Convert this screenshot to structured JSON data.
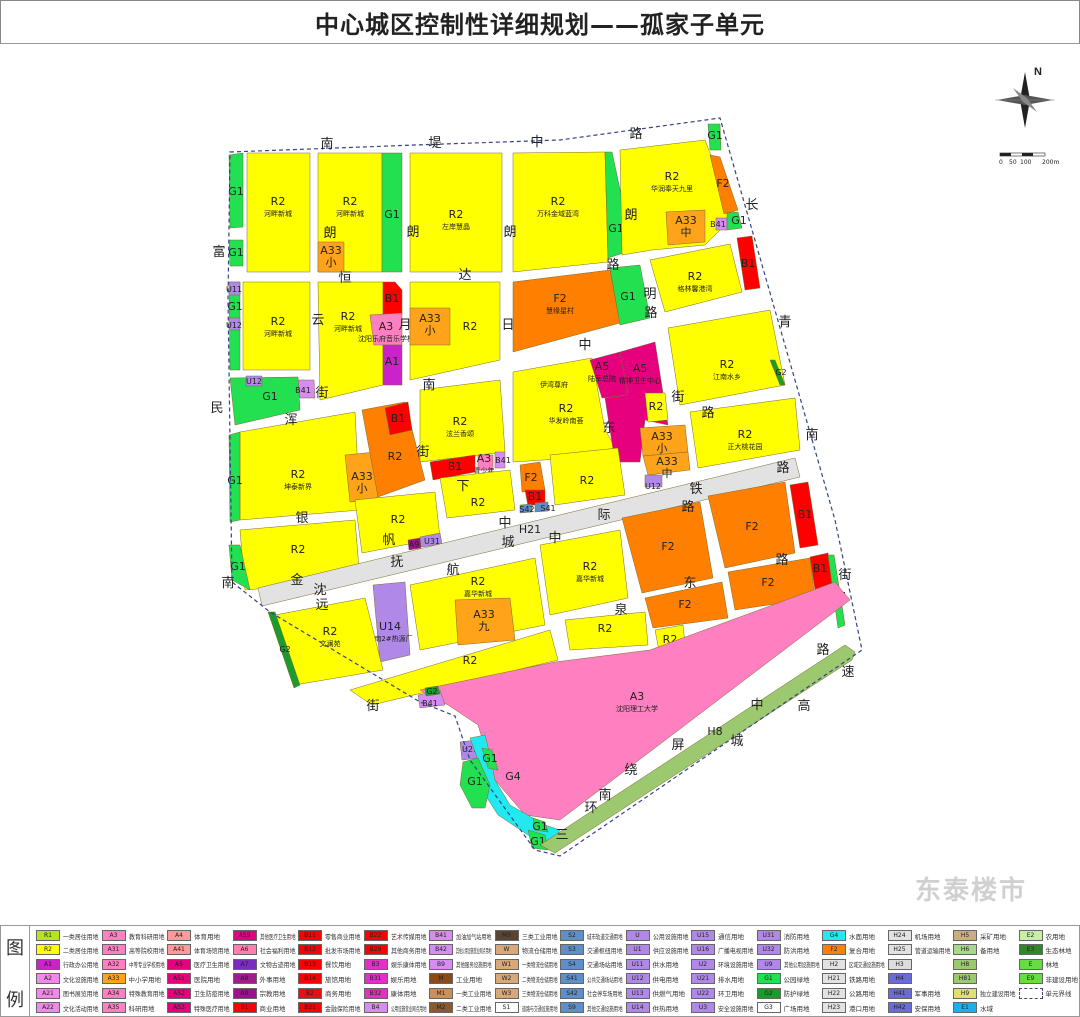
{
  "title": "中心城区控制性详细规划——孤家子单元",
  "compass": {
    "north_label": "N",
    "scale_labels": [
      "0",
      "50",
      "100",
      "200m"
    ]
  },
  "land_use_colors": {
    "R1": "#b5e61d",
    "R2": "#ffff00",
    "A1": "#cc22cc",
    "A2": "#f08ae8",
    "A3": "#ff80c0",
    "A33": "#ffa41a",
    "A4": "#ff9a9a",
    "A5": "#e6007e",
    "A6": "#ff80b0",
    "A7": "#7a2bc0",
    "A8": "#a01c8c",
    "A9": "#a0108a",
    "B1": "#ff0000",
    "B2": "#e81010",
    "B3": "#e030c8",
    "B4": "#d68cf0",
    "B41": "#d68cf0",
    "B9": "#d68cf0",
    "M": "#8b4a1a",
    "M1": "#c8905a",
    "M2": "#8b5a2b",
    "M3": "#5a4535",
    "W": "#d8a878",
    "S1": "#ffffff",
    "S": "#5f8fc8",
    "U": "#b088e8",
    "G1": "#22e050",
    "G2": "#1c9a2c",
    "G3": "#ffffff",
    "G4": "#22e8f0",
    "F2": "#ff8000",
    "H2": "#e2e2e2",
    "H4": "#6a6ad8",
    "H5": "#c8b07a",
    "H6": "#a8d888",
    "H8": "#9cc870",
    "H9": "#e0e070",
    "E1": "#1ab0f0",
    "E2": "#c8f0a0",
    "E3": "#2a8a2a",
    "E": "#66dd44",
    "boundary": "#334488",
    "road": "#ffffff",
    "orange_r2": "#ff8000"
  },
  "parcels": [
    {
      "code": "G1",
      "name": ""
    },
    {
      "code": "G1",
      "name": ""
    },
    {
      "code": "R2",
      "name": "河畔新城"
    },
    {
      "code": "R2",
      "name": "河畔新城"
    },
    {
      "code": "A33",
      "name": "小"
    },
    {
      "code": "G1",
      "name": ""
    },
    {
      "code": "R2",
      "name": "左岸慧晶"
    },
    {
      "code": "R2",
      "name": "万科金域蓝湾"
    },
    {
      "code": "G1",
      "name": ""
    },
    {
      "code": "G1",
      "name": ""
    },
    {
      "code": "R2",
      "name": "华润奉天九里"
    },
    {
      "code": "F2",
      "name": ""
    },
    {
      "code": "A33",
      "name": "中"
    },
    {
      "code": "B41",
      "name": ""
    },
    {
      "code": "G1",
      "name": ""
    },
    {
      "code": "G1",
      "name": ""
    },
    {
      "code": "U11",
      "name": ""
    },
    {
      "code": "U12",
      "name": ""
    },
    {
      "code": "R2",
      "name": "河畔新城"
    },
    {
      "code": "R2",
      "name": "河畔新城"
    },
    {
      "code": "B1",
      "name": ""
    },
    {
      "code": "A3",
      "name": "沈阳乐府音乐学校"
    },
    {
      "code": "A1",
      "name": ""
    },
    {
      "code": "R2",
      "name": ""
    },
    {
      "code": "A33",
      "name": "小"
    },
    {
      "code": "F2",
      "name": "慧缘星村"
    },
    {
      "code": "G1",
      "name": ""
    },
    {
      "code": "R2",
      "name": "格林馨港湾"
    },
    {
      "code": "B1",
      "name": ""
    },
    {
      "code": "G1",
      "name": ""
    },
    {
      "code": "U12",
      "name": ""
    },
    {
      "code": "B41",
      "name": ""
    },
    {
      "code": "R2",
      "name": "华发岭南荟"
    },
    {
      "code": "A5",
      "name": "陆军总院"
    },
    {
      "code": "A5",
      "name": "精神卫生中心"
    },
    {
      "code": "R2",
      "name": ""
    },
    {
      "code": "R2",
      "name": "江南水乡"
    },
    {
      "code": "G2",
      "name": ""
    },
    {
      "code": "R2",
      "name": "正大桃花园"
    },
    {
      "code": "A33",
      "name": "小"
    },
    {
      "code": "A33",
      "name": "中"
    },
    {
      "code": "U12",
      "name": ""
    },
    {
      "code": "R2",
      "name": "泫兰香颂"
    },
    {
      "code": "B1",
      "name": ""
    },
    {
      "code": "A3",
      "name": "青少年"
    },
    {
      "code": "B41",
      "name": ""
    },
    {
      "code": "R2",
      "name": "坤泰新界"
    },
    {
      "code": "G1",
      "name": ""
    },
    {
      "code": "A33",
      "name": "小"
    },
    {
      "code": "R2",
      "name": ""
    },
    {
      "code": "B1",
      "name": ""
    },
    {
      "code": "R2",
      "name": ""
    },
    {
      "code": "F2",
      "name": ""
    },
    {
      "code": "B1",
      "name": ""
    },
    {
      "code": "R2",
      "name": ""
    },
    {
      "code": "R2",
      "name": ""
    },
    {
      "code": "A9",
      "name": ""
    },
    {
      "code": "U31",
      "name": ""
    },
    {
      "code": "R2",
      "name": ""
    },
    {
      "code": "G1",
      "name": ""
    },
    {
      "code": "H21",
      "name": ""
    },
    {
      "code": "F2",
      "name": ""
    },
    {
      "code": "F2",
      "name": ""
    },
    {
      "code": "B1",
      "name": ""
    },
    {
      "code": "F2",
      "name": ""
    },
    {
      "code": "F2",
      "name": ""
    },
    {
      "code": "B1",
      "name": ""
    },
    {
      "code": "G1",
      "name": ""
    },
    {
      "code": "R2",
      "name": "嘉华新城"
    },
    {
      "code": "A33",
      "name": "九"
    },
    {
      "code": "R2",
      "name": "嘉华新城"
    },
    {
      "code": "U14",
      "name": "浑南2#热源厂"
    },
    {
      "code": "R2",
      "name": "文澜苑"
    },
    {
      "code": "G2",
      "name": ""
    },
    {
      "code": "R2",
      "name": ""
    },
    {
      "code": "R2",
      "name": ""
    },
    {
      "code": "R2",
      "name": ""
    },
    {
      "code": "A3",
      "name": "沈阳理工大学"
    },
    {
      "code": "B41",
      "name": ""
    },
    {
      "code": "U21",
      "name": ""
    },
    {
      "code": "G4",
      "name": ""
    },
    {
      "code": "G1",
      "name": ""
    },
    {
      "code": "G1",
      "name": ""
    },
    {
      "code": "G1",
      "name": ""
    },
    {
      "code": "H8",
      "name": ""
    },
    {
      "code": "G1",
      "name": ""
    },
    {
      "code": "G2",
      "name": ""
    },
    {
      "code": "S42",
      "name": ""
    },
    {
      "code": "S41",
      "name": ""
    }
  ],
  "extra_labels": [
    "伊湾尊府"
  ],
  "road_labels": [
    "南",
    "堤",
    "中",
    "路",
    "朗",
    "朗",
    "朗",
    "朗",
    "长",
    "富",
    "恒",
    "达",
    "路",
    "云",
    "月",
    "日",
    "明",
    "路",
    "青",
    "中",
    "南",
    "街",
    "街",
    "路",
    "南",
    "民",
    "浑",
    "街",
    "东",
    "路",
    "下",
    "银",
    "际",
    "铁",
    "路",
    "中",
    "城",
    "中",
    "航",
    "抚",
    "帆",
    "金",
    "沈",
    "南",
    "远",
    "泉",
    "东",
    "路",
    "街",
    "路",
    "速",
    "中",
    "高",
    "城",
    "屏",
    "绕",
    "南",
    "环",
    "三",
    "街"
  ],
  "legend": {
    "heading": [
      "图",
      "例"
    ],
    "items": [
      {
        "code": "R1",
        "label": "一类居住用地"
      },
      {
        "code": "R2",
        "label": "二类居住用地"
      },
      {
        "code": "A1",
        "label": "行政办公用地"
      },
      {
        "code": "A2",
        "label": "文化设施用地"
      },
      {
        "code": "A21",
        "label": "图书展览用地"
      },
      {
        "code": "A22",
        "label": "文化活动用地"
      },
      {
        "code": "A3",
        "label": "教育科研用地"
      },
      {
        "code": "A31",
        "label": "高等院校用地"
      },
      {
        "code": "A32",
        "label": "中等专业学校用地"
      },
      {
        "code": "A33",
        "label": "中小学用地"
      },
      {
        "code": "A34",
        "label": "特殊教育用地"
      },
      {
        "code": "A35",
        "label": "科研用地"
      },
      {
        "code": "A4",
        "label": "体育用地"
      },
      {
        "code": "A41",
        "label": "体育场馆用地"
      },
      {
        "code": "A5",
        "label": "医疗卫生用地"
      },
      {
        "code": "A51",
        "label": "医院用地"
      },
      {
        "code": "A52",
        "label": "卫生防疫用地"
      },
      {
        "code": "A53",
        "label": "特殊医疗用地"
      },
      {
        "code": "A59",
        "label": "其他医疗卫生用地"
      },
      {
        "code": "A6",
        "label": "社会福利用地"
      },
      {
        "code": "A7",
        "label": "文物古迹用地"
      },
      {
        "code": "A8",
        "label": "外事用地"
      },
      {
        "code": "A9",
        "label": "宗教用地"
      },
      {
        "code": "B1",
        "label": "商业用地"
      },
      {
        "code": "B11",
        "label": "零售商业用地"
      },
      {
        "code": "B12",
        "label": "批发市场用地"
      },
      {
        "code": "B13",
        "label": "餐饮用地"
      },
      {
        "code": "B14",
        "label": "旅馆用地"
      },
      {
        "code": "B2",
        "label": "商务用地"
      },
      {
        "code": "B21",
        "label": "金融保险用地"
      },
      {
        "code": "B22",
        "label": "艺术传媒用地"
      },
      {
        "code": "B29",
        "label": "其他商务用地"
      },
      {
        "code": "B3",
        "label": "娱乐康体用地"
      },
      {
        "code": "B31",
        "label": "娱乐用地"
      },
      {
        "code": "B32",
        "label": "康体用地"
      },
      {
        "code": "B4",
        "label": "公用设施营业网点用地"
      },
      {
        "code": "B41",
        "label": "加油加气站用地"
      },
      {
        "code": "B42",
        "label": "其他公用设施营业网点用地"
      },
      {
        "code": "B9",
        "label": "其他服务设施用地"
      },
      {
        "code": "M",
        "label": "工业用地"
      },
      {
        "code": "M1",
        "label": "一类工业用地"
      },
      {
        "code": "M2",
        "label": "二类工业用地"
      },
      {
        "code": "M3",
        "label": "三类工业用地"
      },
      {
        "code": "W",
        "label": "物流仓储用地"
      },
      {
        "code": "W1",
        "label": "一类物流仓储用地"
      },
      {
        "code": "W2",
        "label": "二类物流仓储用地"
      },
      {
        "code": "W3",
        "label": "三类物流仓储用地"
      },
      {
        "code": "S1",
        "label": "道路与交通设施用地"
      },
      {
        "code": "S2",
        "label": "城市轨道交通用地"
      },
      {
        "code": "S3",
        "label": "交通枢纽用地"
      },
      {
        "code": "S4",
        "label": "交通场站用地"
      },
      {
        "code": "S41",
        "label": "公共交通场站用地"
      },
      {
        "code": "S42",
        "label": "社会停车场用地"
      },
      {
        "code": "S9",
        "label": "其他交通设施用地"
      },
      {
        "code": "U",
        "label": "公用设施用地"
      },
      {
        "code": "U1",
        "label": "供应设施用地"
      },
      {
        "code": "U11",
        "label": "供水用地"
      },
      {
        "code": "U12",
        "label": "供电用地"
      },
      {
        "code": "U13",
        "label": "供燃气用地"
      },
      {
        "code": "U14",
        "label": "供热用地"
      },
      {
        "code": "U15",
        "label": "通信用地"
      },
      {
        "code": "U16",
        "label": "广播电视用地"
      },
      {
        "code": "U2",
        "label": "环境设施用地"
      },
      {
        "code": "U21",
        "label": "排水用地"
      },
      {
        "code": "U22",
        "label": "环卫用地"
      },
      {
        "code": "U3",
        "label": "安全设施用地"
      },
      {
        "code": "U31",
        "label": "消防用地"
      },
      {
        "code": "U32",
        "label": "防洪用地"
      },
      {
        "code": "U9",
        "label": "其他公用设施用地"
      },
      {
        "code": "G1",
        "label": "公园绿地"
      },
      {
        "code": "G2",
        "label": "防护绿地"
      },
      {
        "code": "G3",
        "label": "广场用地"
      },
      {
        "code": "G4",
        "label": "水面用地"
      },
      {
        "code": "F2",
        "label": "复合用地"
      },
      {
        "code": "H2",
        "label": "区域交通设施用地"
      },
      {
        "code": "H21",
        "label": "铁路用地"
      },
      {
        "code": "H22",
        "label": "公路用地"
      },
      {
        "code": "H23",
        "label": "港口用地"
      },
      {
        "code": "H24",
        "label": "机场用地"
      },
      {
        "code": "H25",
        "label": "管道运输用地"
      },
      {
        "code": "H3",
        "label": ""
      },
      {
        "code": "H4",
        "label": ""
      },
      {
        "code": "H41",
        "label": "军事用地"
      },
      {
        "code": "H42",
        "label": "安保用地"
      },
      {
        "code": "H5",
        "label": "采矿用地"
      },
      {
        "code": "H6",
        "label": "备用地"
      },
      {
        "code": "H8",
        "label": ""
      },
      {
        "code": "H81",
        "label": ""
      },
      {
        "code": "H9",
        "label": "独立建设用地"
      },
      {
        "code": "E1",
        "label": "水域"
      },
      {
        "code": "E2",
        "label": "农用地"
      },
      {
        "code": "E3",
        "label": "生态林地"
      },
      {
        "code": "E",
        "label": "林地"
      },
      {
        "code": "E9",
        "label": "非建设用地"
      },
      {
        "code": "",
        "label": "单元界线"
      }
    ]
  },
  "watermark": "东泰楼市"
}
